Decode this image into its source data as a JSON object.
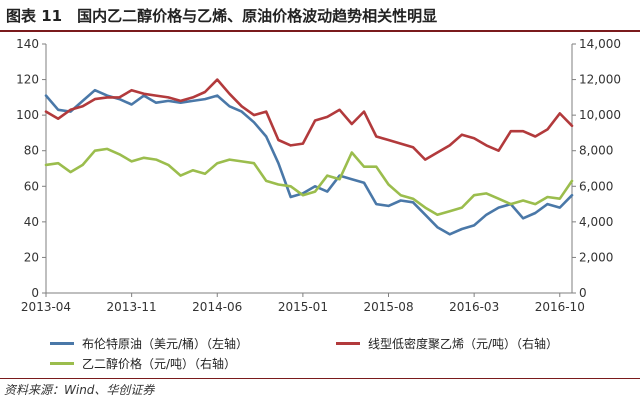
{
  "title": "图表 11　国内乙二醇价格与乙烯、原油价格波动趋势相关性明显",
  "source": "资料来源：Wind、华创证券",
  "colors": {
    "brent": "#4a78a8",
    "lldpe": "#b23a3c",
    "meg": "#9bbd4d",
    "axis": "#7f7f7f",
    "title_rule": "#7a1a1c"
  },
  "chart_data": {
    "type": "line",
    "title": "",
    "x_ticks": [
      "2013-04",
      "2013-11",
      "2014-06",
      "2015-01",
      "2015-08",
      "2016-03",
      "2016-10"
    ],
    "x_range": [
      "2013-04",
      "2016-11"
    ],
    "y_left": {
      "range": [
        0,
        140
      ],
      "ticks": [
        "0",
        "20",
        "40",
        "60",
        "80",
        "100",
        "120",
        "140"
      ]
    },
    "y_right": {
      "range": [
        0,
        14000
      ],
      "ticks": [
        "0",
        "2,000",
        "4,000",
        "6,000",
        "8,000",
        "10,000",
        "12,000",
        "14,000"
      ]
    },
    "grid": false,
    "legend_position": "bottom",
    "series": [
      {
        "name": "布伦特原油（美元/桶）（左轴）",
        "axis": "left",
        "color_key": "brent",
        "x": [
          "2013-04",
          "2013-05",
          "2013-06",
          "2013-07",
          "2013-08",
          "2013-09",
          "2013-10",
          "2013-11",
          "2013-12",
          "2014-01",
          "2014-02",
          "2014-03",
          "2014-04",
          "2014-05",
          "2014-06",
          "2014-07",
          "2014-08",
          "2014-09",
          "2014-10",
          "2014-11",
          "2014-12",
          "2015-01",
          "2015-02",
          "2015-03",
          "2015-04",
          "2015-05",
          "2015-06",
          "2015-07",
          "2015-08",
          "2015-09",
          "2015-10",
          "2015-11",
          "2015-12",
          "2016-01",
          "2016-02",
          "2016-03",
          "2016-04",
          "2016-05",
          "2016-06",
          "2016-07",
          "2016-08",
          "2016-09",
          "2016-10",
          "2016-11"
        ],
        "values": [
          111,
          103,
          102,
          108,
          114,
          111,
          109,
          106,
          111,
          107,
          108,
          107,
          108,
          109,
          111,
          105,
          102,
          96,
          88,
          73,
          54,
          56,
          60,
          57,
          66,
          64,
          62,
          50,
          49,
          52,
          51,
          44,
          37,
          33,
          36,
          38,
          44,
          48,
          50,
          42,
          45,
          50,
          48,
          55
        ]
      },
      {
        "name": "线型低密度聚乙烯（元/吨）（右轴）",
        "axis": "right",
        "color_key": "lldpe",
        "x": [
          "2013-04",
          "2013-05",
          "2013-06",
          "2013-07",
          "2013-08",
          "2013-09",
          "2013-10",
          "2013-11",
          "2013-12",
          "2014-01",
          "2014-02",
          "2014-03",
          "2014-04",
          "2014-05",
          "2014-06",
          "2014-07",
          "2014-08",
          "2014-09",
          "2014-10",
          "2014-11",
          "2014-12",
          "2015-01",
          "2015-02",
          "2015-03",
          "2015-04",
          "2015-05",
          "2015-06",
          "2015-07",
          "2015-08",
          "2015-09",
          "2015-10",
          "2015-11",
          "2015-12",
          "2016-01",
          "2016-02",
          "2016-03",
          "2016-04",
          "2016-05",
          "2016-06",
          "2016-07",
          "2016-08",
          "2016-09",
          "2016-10",
          "2016-11"
        ],
        "values": [
          10200,
          9800,
          10300,
          10500,
          10900,
          11000,
          11000,
          11400,
          11200,
          11100,
          11000,
          10800,
          11000,
          11300,
          12000,
          11200,
          10500,
          10000,
          10200,
          8600,
          8300,
          8400,
          9700,
          9900,
          10300,
          9500,
          10200,
          8800,
          8600,
          8400,
          8200,
          7500,
          7900,
          8300,
          8900,
          8700,
          8300,
          8000,
          9100,
          9100,
          8800,
          9200,
          10100,
          9400
        ]
      },
      {
        "name": "乙二醇价格（元/吨）（右轴）",
        "axis": "right",
        "color_key": "meg",
        "x": [
          "2013-04",
          "2013-05",
          "2013-06",
          "2013-07",
          "2013-08",
          "2013-09",
          "2013-10",
          "2013-11",
          "2013-12",
          "2014-01",
          "2014-02",
          "2014-03",
          "2014-04",
          "2014-05",
          "2014-06",
          "2014-07",
          "2014-08",
          "2014-09",
          "2014-10",
          "2014-11",
          "2014-12",
          "2015-01",
          "2015-02",
          "2015-03",
          "2015-04",
          "2015-05",
          "2015-06",
          "2015-07",
          "2015-08",
          "2015-09",
          "2015-10",
          "2015-11",
          "2015-12",
          "2016-01",
          "2016-02",
          "2016-03",
          "2016-04",
          "2016-05",
          "2016-06",
          "2016-07",
          "2016-08",
          "2016-09",
          "2016-10",
          "2016-11"
        ],
        "values": [
          7200,
          7300,
          6800,
          7200,
          8000,
          8100,
          7800,
          7400,
          7600,
          7500,
          7200,
          6600,
          6900,
          6700,
          7300,
          7500,
          7400,
          7300,
          6300,
          6100,
          6000,
          5500,
          5700,
          6600,
          6400,
          7900,
          7100,
          7100,
          6100,
          5500,
          5300,
          4800,
          4400,
          4600,
          4800,
          5500,
          5600,
          5300,
          5000,
          5200,
          5000,
          5400,
          5300,
          6300
        ]
      }
    ]
  }
}
